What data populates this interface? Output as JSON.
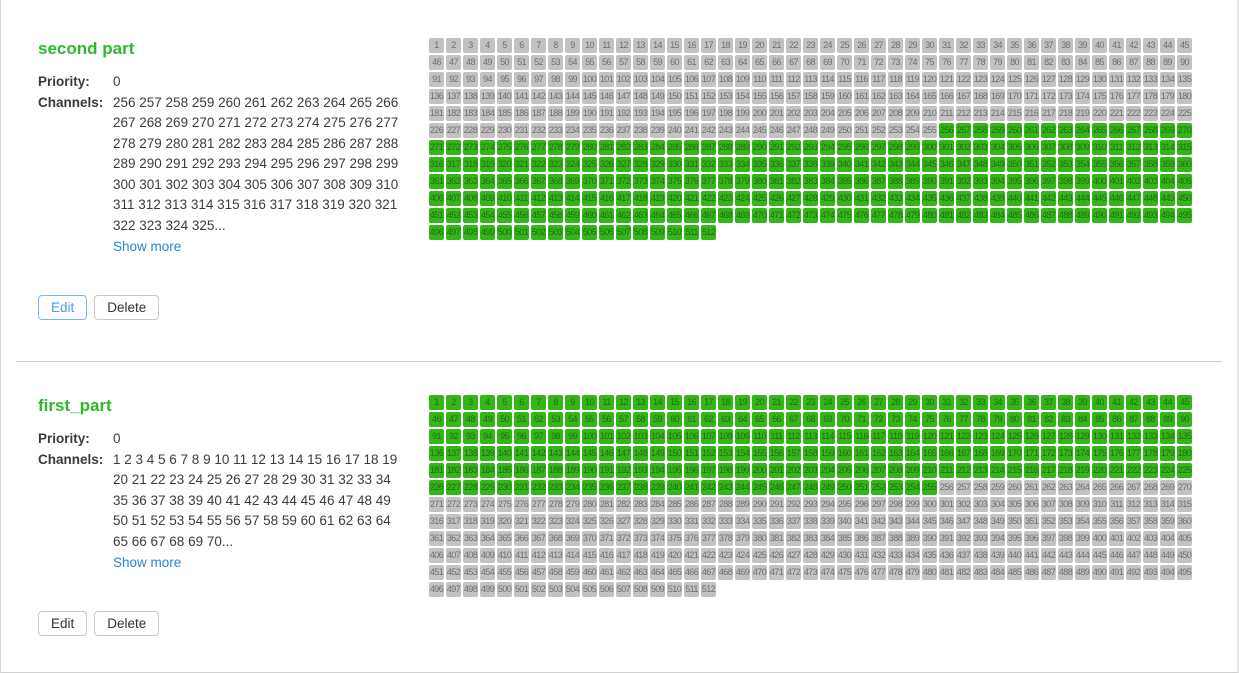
{
  "colors": {
    "title_green": "#2cb92c",
    "cell_active_bg": "#35b618",
    "cell_active_text": "#1d6e12",
    "cell_inactive_bg": "#c2c2c2",
    "cell_inactive_text": "#6d6d6d",
    "link_blue": "#2287e0",
    "edit_highlight_blue": "#4a9ced"
  },
  "sections": [
    {
      "title": "second part",
      "priority_label": "Priority:",
      "priority_value": "0",
      "channels_label": "Channels:",
      "channels_text": "256 257 258 259 260 261 262 263 264 265 266 267 268 269 270 271 272 273 274 275 276 277 278 279 280 281 282 283 284 285 286 287 288 289 290 291 292 293 294 295 296 297 298 299 300 301 302 303 304 305 306 307 308 309 310 311 312 313 314 315 316 317 318 319 320 321 322 323 324 325...",
      "show_more_label": "Show more",
      "edit_label": "Edit",
      "delete_label": "Delete",
      "edit_highlighted": true,
      "grid": {
        "total": 512,
        "columns": 45,
        "active_start": 256,
        "active_end": 512
      }
    },
    {
      "title": "first_part",
      "priority_label": "Priority:",
      "priority_value": "0",
      "channels_label": "Channels:",
      "channels_text": "1 2 3 4 5 6 7 8 9 10 11 12 13 14 15 16 17 18 19 20 21 22 23 24 25 26 27 28 29 30 31 32 33 34 35 36 37 38 39 40 41 42 43 44 45 46 47 48 49 50 51 52 53 54 55 56 57 58 59 60 61 62 63 64 65 66 67 68 69 70...",
      "show_more_label": "Show more",
      "edit_label": "Edit",
      "delete_label": "Delete",
      "edit_highlighted": false,
      "grid": {
        "total": 512,
        "columns": 45,
        "active_start": 1,
        "active_end": 255
      }
    }
  ]
}
